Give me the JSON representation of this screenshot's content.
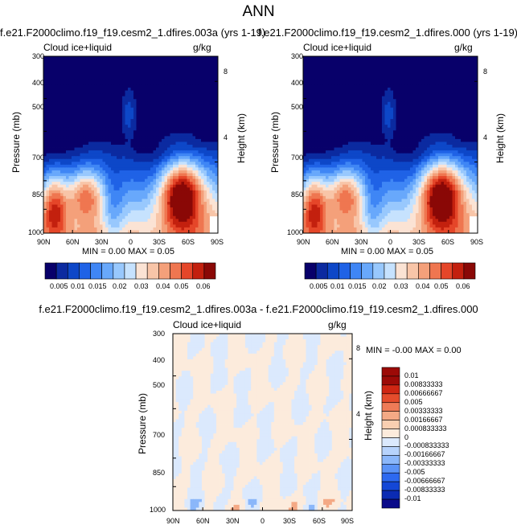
{
  "figure": {
    "title": "ANN"
  },
  "colors": {
    "seq": [
      "#08006a",
      "#0b2aa0",
      "#0d47c8",
      "#1f62e6",
      "#3f86f5",
      "#68a8fb",
      "#98c8fd",
      "#c6e2fe",
      "#fbe3d4",
      "#f8c5a8",
      "#f4a07a",
      "#ef7650",
      "#e54629",
      "#c3200e",
      "#8a0806"
    ],
    "div": [
      "#0a0a8a",
      "#0b2bb3",
      "#1447d6",
      "#2d69f0",
      "#5b93f7",
      "#8bb7fa",
      "#b7d3fc",
      "#dbe9fd",
      "#fcebdc",
      "#f9cfb1",
      "#f4a985",
      "#ee7b57",
      "#e54c2c",
      "#cf2613",
      "#9c0a07"
    ]
  },
  "chart_data": [
    {
      "type": "heatmap",
      "title": "f.e21.F2000climo.f19_f19.cesm2_1.dfires.003a (yrs 1-19)",
      "left_subtitle": "Cloud ice+liquid",
      "right_subtitle": "g/kg",
      "xlabel": "",
      "ylabel": "Pressure (mb)",
      "y2label": "Height (km)",
      "x_ticks": [
        "90N",
        "60N",
        "30N",
        "0",
        "30S",
        "60S",
        "90S"
      ],
      "y_ticks": [
        "300",
        "400",
        "500",
        "700",
        "850",
        "1000"
      ],
      "y_tick_values": [
        300,
        400,
        500,
        700,
        850,
        1000
      ],
      "y2_ticks": [
        "8",
        "4"
      ],
      "y2_tick_pressures": [
        356,
        616
      ],
      "ylim": [
        1000,
        300
      ],
      "xlim": [
        90,
        -90
      ],
      "stats": "MIN =  0.00   MAX =  0.05",
      "colorbar_levels": [
        "0.005",
        "0.01",
        "0.015",
        "0.02",
        "0.03",
        "0.04",
        "0.05",
        "0.06"
      ],
      "grid": false
    },
    {
      "type": "heatmap",
      "title": "f.e21.F2000climo.f19_f19.cesm2_1.dfires.000 (yrs 1-19)",
      "left_subtitle": "Cloud ice+liquid",
      "right_subtitle": "g/kg",
      "xlabel": "",
      "ylabel": "Pressure (mb)",
      "y2label": "Height (km)",
      "x_ticks": [
        "90N",
        "60N",
        "30N",
        "0",
        "30S",
        "60S",
        "90S"
      ],
      "y_ticks": [
        "300",
        "400",
        "500",
        "700",
        "850",
        "1000"
      ],
      "y_tick_values": [
        300,
        400,
        500,
        700,
        850,
        1000
      ],
      "y2_ticks": [
        "8",
        "4"
      ],
      "y2_tick_pressures": [
        356,
        616
      ],
      "ylim": [
        1000,
        300
      ],
      "xlim": [
        90,
        -90
      ],
      "stats": "MIN =  0.00   MAX =  0.05",
      "colorbar_levels": [
        "0.005",
        "0.01",
        "0.015",
        "0.02",
        "0.03",
        "0.04",
        "0.05",
        "0.06"
      ],
      "grid": false
    },
    {
      "type": "heatmap",
      "title": "f.e21.F2000climo.f19_f19.cesm2_1.dfires.003a - f.e21.F2000climo.f19_f19.cesm2_1.dfires.000",
      "left_subtitle": "Cloud ice+liquid",
      "right_subtitle": "g/kg",
      "xlabel": "",
      "ylabel": "Pressure (mb)",
      "y2label": "Height (km)",
      "x_ticks": [
        "90N",
        "60N",
        "30N",
        "0",
        "30S",
        "60S",
        "90S"
      ],
      "y_ticks": [
        "300",
        "400",
        "500",
        "700",
        "850",
        "1000"
      ],
      "y_tick_values": [
        300,
        400,
        500,
        700,
        850,
        1000
      ],
      "y2_ticks": [
        "8",
        "4"
      ],
      "y2_tick_pressures": [
        356,
        616
      ],
      "ylim": [
        1000,
        300
      ],
      "xlim": [
        90,
        -90
      ],
      "stats": "MIN = -0.00   MAX =  0.00",
      "colorbar_levels": [
        "0.01",
        "0.00833333",
        "0.00666667",
        "0.005",
        "0.00333333",
        "0.00166667",
        "0.000833333",
        "0",
        "-0.000833333",
        "-0.00166667",
        "-0.00333333",
        "-0.005",
        "-0.00666667",
        "-0.00833333",
        "-0.01"
      ],
      "grid": false
    }
  ]
}
